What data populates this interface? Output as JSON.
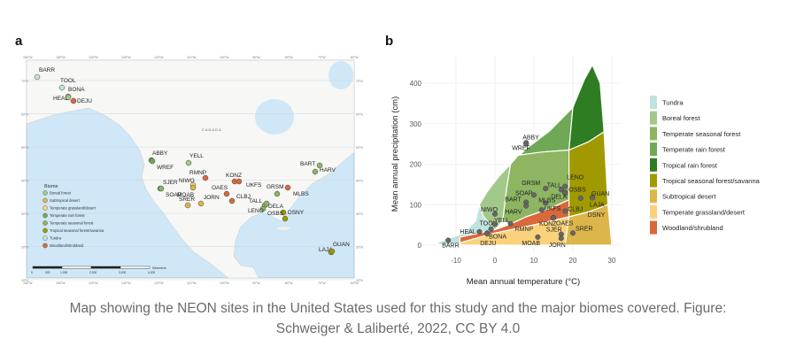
{
  "figure": {
    "panel_a_label": "a",
    "panel_b_label": "b",
    "caption_line1": "Map showing the NEON sites in the United States used for this study and the major biomes covered. Figure:",
    "caption_line2": "Schweiger & Laliberté, 2022, CC BY 4.0"
  },
  "biome_colors": {
    "Tundra": "#bfe3dd",
    "Boreal forest": "#a3c98a",
    "Temperate seasonal forest": "#8db562",
    "Temperate rain forest": "#6fa955",
    "Tropical rain forest": "#2e7d22",
    "Tropical seasonal forest/savanna": "#a09a00",
    "Subtropical desert": "#dcb64a",
    "Temperate grassland/desert": "#fbd27c",
    "Woodland/shrubland": "#d9693a"
  },
  "map": {
    "legend_title": "Biome",
    "legend_items": [
      "Boreal forest",
      "Subtropical desert",
      "Temperate grassland/desert",
      "Temperate rain forest",
      "Temperate seasonal forest",
      "Tropical seasonal forest/savanna",
      "Tundra",
      "Woodland/shrubland"
    ],
    "country_label": "CANADA",
    "lon_labels": [
      "160°W",
      "150°W",
      "140°W",
      "130°W",
      "120°W",
      "110°W",
      "100°W",
      "90°W",
      "80°W",
      "70°W",
      "60°W"
    ],
    "lat_labels": [
      "70°N",
      "60°N",
      "50°N",
      "40°N",
      "30°N",
      "20°N",
      "10°N"
    ],
    "scale_labels": [
      "0",
      "500",
      "1,000",
      "2,000",
      "3,000",
      "4,000"
    ],
    "scale_unit": "Kilometers",
    "sites": [
      {
        "code": "BARR",
        "biome": "Tundra"
      },
      {
        "code": "TOOL",
        "biome": "Tundra"
      },
      {
        "code": "BONA",
        "biome": "Boreal forest"
      },
      {
        "code": "HEAL",
        "biome": "Boreal forest"
      },
      {
        "code": "DEJU",
        "biome": "Woodland/shrubland"
      },
      {
        "code": "ABBY",
        "biome": "Temperate rain forest"
      },
      {
        "code": "WREF",
        "biome": "Temperate rain forest"
      },
      {
        "code": "YELL",
        "biome": "Boreal forest"
      },
      {
        "code": "RMNP",
        "biome": "Woodland/shrubland"
      },
      {
        "code": "NIWO",
        "biome": "Temperate grassland/desert"
      },
      {
        "code": "SJER",
        "biome": "Temperate seasonal forest"
      },
      {
        "code": "SOAP",
        "biome": "Temperate seasonal forest"
      },
      {
        "code": "MOAB",
        "biome": "Subtropical desert"
      },
      {
        "code": "SRER",
        "biome": "Subtropical desert"
      },
      {
        "code": "JORN",
        "biome": "Subtropical desert"
      },
      {
        "code": "KONZ",
        "biome": "Woodland/shrubland"
      },
      {
        "code": "UKFS",
        "biome": "Woodland/shrubland"
      },
      {
        "code": "OAES",
        "biome": "Woodland/shrubland"
      },
      {
        "code": "CLBJ",
        "biome": "Woodland/shrubland"
      },
      {
        "code": "GRSM",
        "biome": "Temperate seasonal forest"
      },
      {
        "code": "MLBS",
        "biome": "Woodland/shrubland"
      },
      {
        "code": "TALL",
        "biome": "Temperate seasonal forest"
      },
      {
        "code": "DELA",
        "biome": "Temperate seasonal forest"
      },
      {
        "code": "LENO",
        "biome": "Temperate seasonal forest"
      },
      {
        "code": "OSBS",
        "biome": "Tropical seasonal forest/savanna"
      },
      {
        "code": "DSNY",
        "biome": "Tropical seasonal forest/savanna"
      },
      {
        "code": "BART",
        "biome": "Temperate seasonal forest"
      },
      {
        "code": "HARV",
        "biome": "Temperate seasonal forest"
      },
      {
        "code": "LAJA",
        "biome": "Tropical seasonal forest/savanna"
      },
      {
        "code": "GUAN",
        "biome": "Tropical seasonal forest/savanna"
      }
    ]
  },
  "chart_data": {
    "type": "scatter",
    "title": "",
    "xlabel": "Mean annual temperature (°C)",
    "ylabel": "Mean annual precipitation (cm)",
    "xlim": [
      -16,
      32
    ],
    "ylim": [
      -15,
      460
    ],
    "xticks": [
      -10,
      0,
      10,
      20,
      30
    ],
    "yticks": [
      0,
      100,
      200,
      300,
      400
    ],
    "grid": true,
    "legend_position": "right",
    "legend": [
      "Tundra",
      "Boreal forest",
      "Temperate seasonal forest",
      "Temperate rain forest",
      "Tropical rain forest",
      "Tropical seasonal forest/savanna",
      "Subtropical desert",
      "Temperate grassland/desert",
      "Woodland/shrubland"
    ],
    "points": [
      {
        "label": "BARR",
        "t": -12,
        "p": 12
      },
      {
        "label": "HEAL",
        "t": -4,
        "p": 33
      },
      {
        "label": "TOOL",
        "t": -1,
        "p": 40
      },
      {
        "label": "BONA",
        "t": -2,
        "p": 30
      },
      {
        "label": "DEJU",
        "t": -2,
        "p": 28
      },
      {
        "label": "NIWO",
        "t": 0,
        "p": 77
      },
      {
        "label": "YELL",
        "t": 0,
        "p": 52
      },
      {
        "label": "RMNP",
        "t": 4,
        "p": 53
      },
      {
        "label": "ABBY",
        "t": 8,
        "p": 253
      },
      {
        "label": "WREF",
        "t": 8,
        "p": 250
      },
      {
        "label": "BART",
        "t": 8,
        "p": 106
      },
      {
        "label": "HARV",
        "t": 8,
        "p": 97
      },
      {
        "label": "SOAP",
        "t": 10,
        "p": 124
      },
      {
        "label": "GRSM",
        "t": 13,
        "p": 140
      },
      {
        "label": "MLBS",
        "t": 13,
        "p": 104
      },
      {
        "label": "UKFS",
        "t": 12,
        "p": 87
      },
      {
        "label": "KONZ",
        "t": 15,
        "p": 68
      },
      {
        "label": "OAES",
        "t": 15,
        "p": 67
      },
      {
        "label": "MOAB",
        "t": 11,
        "p": 20
      },
      {
        "label": "SJER",
        "t": 17,
        "p": 27
      },
      {
        "label": "JORN",
        "t": 17,
        "p": 17
      },
      {
        "label": "SRER",
        "t": 20,
        "p": 30
      },
      {
        "label": "TALL",
        "t": 17,
        "p": 137
      },
      {
        "label": "LENO",
        "t": 18,
        "p": 145
      },
      {
        "label": "OSBS",
        "t": 18,
        "p": 130
      },
      {
        "label": "DELA",
        "t": 18,
        "p": 128
      },
      {
        "label": "CLBJ",
        "t": 18,
        "p": 84
      },
      {
        "label": "DSNY",
        "t": 22,
        "p": 116
      },
      {
        "label": "GUAN",
        "t": 25,
        "p": 118
      },
      {
        "label": "LAJA",
        "t": 25,
        "p": 117
      }
    ]
  }
}
